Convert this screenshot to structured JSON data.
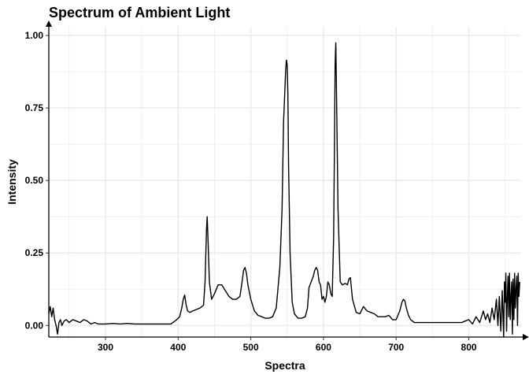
{
  "chart_data": {
    "type": "line",
    "title": "Spectrum of Ambient Light",
    "xlabel": "Spectra",
    "ylabel": "Intensity",
    "xlim": [
      222,
      872
    ],
    "ylim": [
      -0.04,
      1.03
    ],
    "xticks": [
      300,
      400,
      500,
      600,
      700,
      800
    ],
    "yticks": [
      0.0,
      0.25,
      0.5,
      0.75,
      1.0
    ],
    "ytick_labels": [
      "0.00",
      "0.25",
      "0.50",
      "0.75",
      "1.00"
    ],
    "grid": true,
    "line_color": "#000000",
    "series": [
      {
        "x": [
          222,
          224,
          226,
          228,
          230,
          232,
          234,
          236,
          238,
          240,
          243,
          246,
          250,
          255,
          260,
          265,
          270,
          275,
          280,
          285,
          290,
          300,
          310,
          320,
          330,
          340,
          350,
          360,
          370,
          380,
          390,
          398,
          402,
          405,
          407,
          409,
          411,
          413,
          416,
          420,
          425,
          430,
          435,
          437,
          439,
          440,
          441,
          443,
          446,
          450,
          455,
          460,
          465,
          470,
          475,
          480,
          485,
          488,
          490,
          492,
          494,
          496,
          500,
          505,
          510,
          515,
          520,
          525,
          530,
          535,
          540,
          543,
          545,
          547,
          548,
          549,
          550,
          551,
          552,
          554,
          557,
          560,
          565,
          570,
          575,
          578,
          580,
          583,
          586,
          588,
          590,
          592,
          594,
          596,
          598,
          600,
          602,
          604,
          606,
          608,
          610,
          612,
          614,
          615,
          616,
          617,
          618,
          620,
          623,
          626,
          630,
          633,
          635,
          637,
          640,
          645,
          650,
          655,
          660,
          665,
          670,
          675,
          680,
          685,
          690,
          695,
          700,
          705,
          708,
          710,
          712,
          714,
          717,
          720,
          725,
          730,
          740,
          750,
          760,
          770,
          780,
          790,
          795,
          800,
          805,
          810,
          815,
          820,
          823,
          826,
          829,
          832,
          835,
          838,
          840,
          842,
          844,
          846,
          848,
          849,
          850,
          851,
          852,
          853,
          854,
          855,
          856,
          857,
          858,
          859,
          860,
          861,
          862,
          863,
          864,
          865,
          866,
          867,
          868,
          869,
          870
        ],
        "y": [
          0.04,
          0.065,
          0.03,
          0.06,
          0.02,
          0.0,
          -0.03,
          0.01,
          0.02,
          0.0,
          0.015,
          0.02,
          0.01,
          0.02,
          0.015,
          0.01,
          0.02,
          0.015,
          0.005,
          0.01,
          0.005,
          0.005,
          0.007,
          0.005,
          0.007,
          0.005,
          0.005,
          0.005,
          0.005,
          0.005,
          0.005,
          0.02,
          0.03,
          0.06,
          0.09,
          0.105,
          0.07,
          0.05,
          0.045,
          0.05,
          0.055,
          0.06,
          0.07,
          0.15,
          0.33,
          0.375,
          0.3,
          0.15,
          0.09,
          0.11,
          0.14,
          0.14,
          0.12,
          0.1,
          0.09,
          0.09,
          0.1,
          0.15,
          0.19,
          0.2,
          0.18,
          0.14,
          0.09,
          0.05,
          0.035,
          0.03,
          0.025,
          0.025,
          0.03,
          0.06,
          0.2,
          0.4,
          0.7,
          0.82,
          0.88,
          0.915,
          0.9,
          0.8,
          0.55,
          0.25,
          0.08,
          0.04,
          0.025,
          0.025,
          0.03,
          0.06,
          0.13,
          0.15,
          0.17,
          0.19,
          0.2,
          0.19,
          0.15,
          0.14,
          0.09,
          0.1,
          0.08,
          0.1,
          0.15,
          0.14,
          0.11,
          0.1,
          0.3,
          0.6,
          0.9,
          0.975,
          0.8,
          0.4,
          0.15,
          0.14,
          0.145,
          0.14,
          0.16,
          0.165,
          0.09,
          0.045,
          0.04,
          0.065,
          0.05,
          0.045,
          0.04,
          0.03,
          0.03,
          0.03,
          0.035,
          0.02,
          0.02,
          0.05,
          0.08,
          0.09,
          0.085,
          0.06,
          0.035,
          0.02,
          0.01,
          0.01,
          0.01,
          0.01,
          0.01,
          0.01,
          0.01,
          0.01,
          0.015,
          0.02,
          0.005,
          0.03,
          0.01,
          0.05,
          0.02,
          0.04,
          0.01,
          0.06,
          0.02,
          0.09,
          0.0,
          0.1,
          -0.02,
          0.12,
          -0.04,
          0.15,
          0.08,
          0.18,
          -0.02,
          0.1,
          0.17,
          0.03,
          0.18,
          0.02,
          0.1,
          0.15,
          -0.03,
          0.16,
          0.02,
          0.18,
          0.06,
          0.12,
          0.17,
          0.0,
          0.18,
          0.1,
          0.15
        ]
      }
    ]
  }
}
